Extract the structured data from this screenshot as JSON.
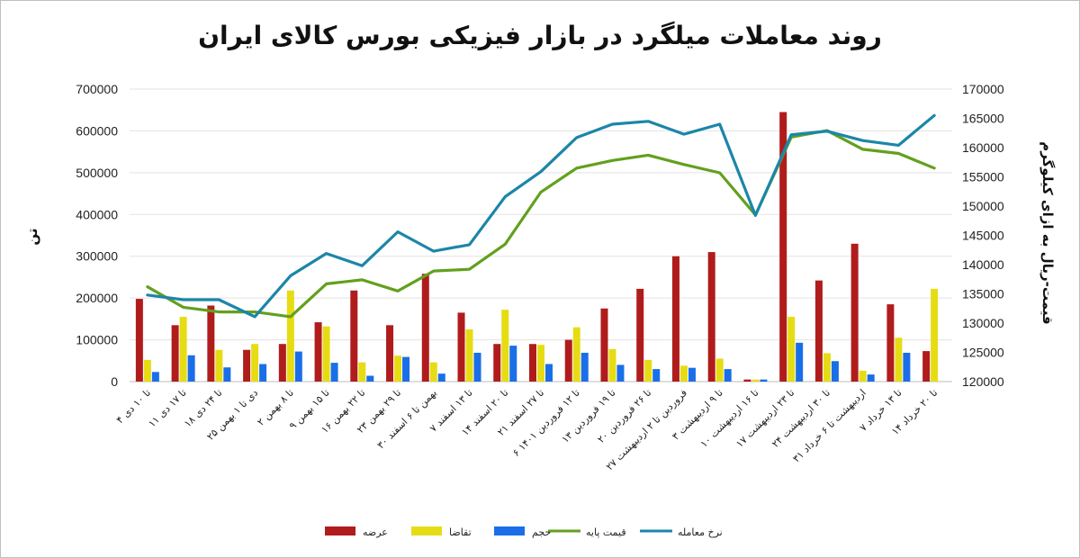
{
  "chart_data": {
    "type": "bar",
    "title": "روند معاملات میلگرد در بازار فیزیکی بورس کالای ایران",
    "ylabel": "تن",
    "y2label": "قیمت-ریال به ازای کیلوگرم",
    "ylim": [
      0,
      700000
    ],
    "y2lim": [
      120000,
      170000
    ],
    "y_ticks": [
      "0",
      "100000",
      "200000",
      "300000",
      "400000",
      "500000",
      "600000",
      "700000"
    ],
    "y2_ticks": [
      "120000",
      "125000",
      "130000",
      "135000",
      "140000",
      "145000",
      "150000",
      "155000",
      "160000",
      "165000",
      "170000"
    ],
    "grid": true,
    "legend_position": "bottom",
    "categories": [
      "۴ تا ۱۰ دی",
      "۱۱ تا ۱۷ دی",
      "۱۸ تا ۲۴ دی",
      "۲۵ دی تا ۱ بهمن",
      "۲ تا ۸ بهمن",
      "۹ تا ۱۵ بهمن",
      "۱۶ تا ۲۲ بهمن",
      "۲۳ تا ۲۹ بهمن",
      "۳۰ بهمن تا ۶ اسفند",
      "۷ تا ۱۳ اسفند",
      "۱۴ تا ۲۰ اسفند",
      "۲۱ تا ۲۷ اسفند",
      "۶ تا ۱۲ فروردین ۱۴۰۱",
      "۱۳ تا ۱۹ فروردین",
      "۲۰ تا ۲۶ فروردین",
      "۲۷ فروردین تا ۲ اردیبهشت",
      "۳ تا ۹ اردیبهشت",
      "۱۰ تا ۱۶ اردیبهشت",
      "۱۷ تا ۲۳ اردیبهشت",
      "۲۴ تا ۳۰ اردیبهشت",
      "۳۱ اردیبهشت تا ۶ خرداد",
      "۷ تا ۱۳ خرداد",
      "۱۴ تا ۲۰ خرداد"
    ],
    "series": [
      {
        "name": "عرضه",
        "type": "bar",
        "axis": "left",
        "color": "#b01c1c",
        "values": [
          198000,
          135000,
          182000,
          76000,
          90000,
          142000,
          218000,
          135000,
          258000,
          165000,
          90000,
          90000,
          100000,
          175000,
          222000,
          300000,
          310000,
          5000,
          645000,
          242000,
          330000,
          185000,
          73000
        ]
      },
      {
        "name": "تقاضا",
        "type": "bar",
        "axis": "left",
        "color": "#e6dc14",
        "values": [
          52000,
          155000,
          76000,
          90000,
          218000,
          132000,
          46000,
          62000,
          46000,
          125000,
          172000,
          88000,
          130000,
          78000,
          52000,
          38000,
          55000,
          5000,
          155000,
          68000,
          26000,
          105000,
          222000
        ]
      },
      {
        "name": "حجم",
        "type": "bar",
        "axis": "left",
        "color": "#1a6fe8",
        "values": [
          23000,
          63000,
          34000,
          42000,
          72000,
          45000,
          14000,
          59000,
          19000,
          69000,
          86000,
          42000,
          69000,
          40000,
          30000,
          33000,
          30000,
          5000,
          93000,
          49000,
          17000,
          69000,
          0
        ]
      },
      {
        "name": "قیمت پایه",
        "type": "line",
        "axis": "right",
        "color": "#62a01e",
        "values": [
          136200,
          132700,
          131900,
          131900,
          131100,
          136700,
          137400,
          135500,
          138900,
          139200,
          143500,
          152400,
          156500,
          157800,
          158700,
          157100,
          155700,
          148500,
          161800,
          162900,
          159700,
          159000,
          156500
        ]
      },
      {
        "name": "نرخ معامله",
        "type": "line",
        "axis": "right",
        "color": "#1b86a8",
        "values": [
          134800,
          134000,
          134000,
          131100,
          138100,
          141900,
          139800,
          145600,
          142300,
          143400,
          151600,
          155900,
          161700,
          164000,
          164500,
          162300,
          164000,
          148400,
          162200,
          162800,
          161200,
          160400,
          165500
        ]
      }
    ]
  }
}
